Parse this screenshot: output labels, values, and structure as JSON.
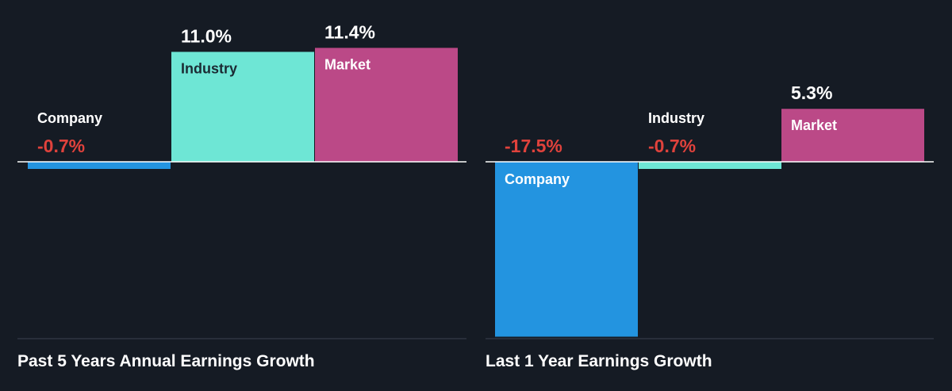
{
  "chart_data": [
    {
      "type": "bar",
      "title": "Past 5 Years Annual Earnings Growth",
      "categories": [
        "Company",
        "Industry",
        "Market"
      ],
      "values": [
        -0.7,
        11.0,
        11.4
      ],
      "value_labels": [
        "-0.7%",
        "11.0%",
        "11.4%"
      ],
      "unit": "%",
      "colors": [
        "#2394e0",
        "#6ee6d5",
        "#bb4987"
      ],
      "negative_label_color": "#e0423c"
    },
    {
      "type": "bar",
      "title": "Last 1 Year Earnings Growth",
      "categories": [
        "Company",
        "Industry",
        "Market"
      ],
      "values": [
        -17.5,
        -0.7,
        5.3
      ],
      "value_labels": [
        "-17.5%",
        "-0.7%",
        "5.3%"
      ],
      "unit": "%",
      "colors": [
        "#2394e0",
        "#6ee6d5",
        "#bb4987"
      ],
      "negative_label_color": "#e0423c"
    }
  ]
}
